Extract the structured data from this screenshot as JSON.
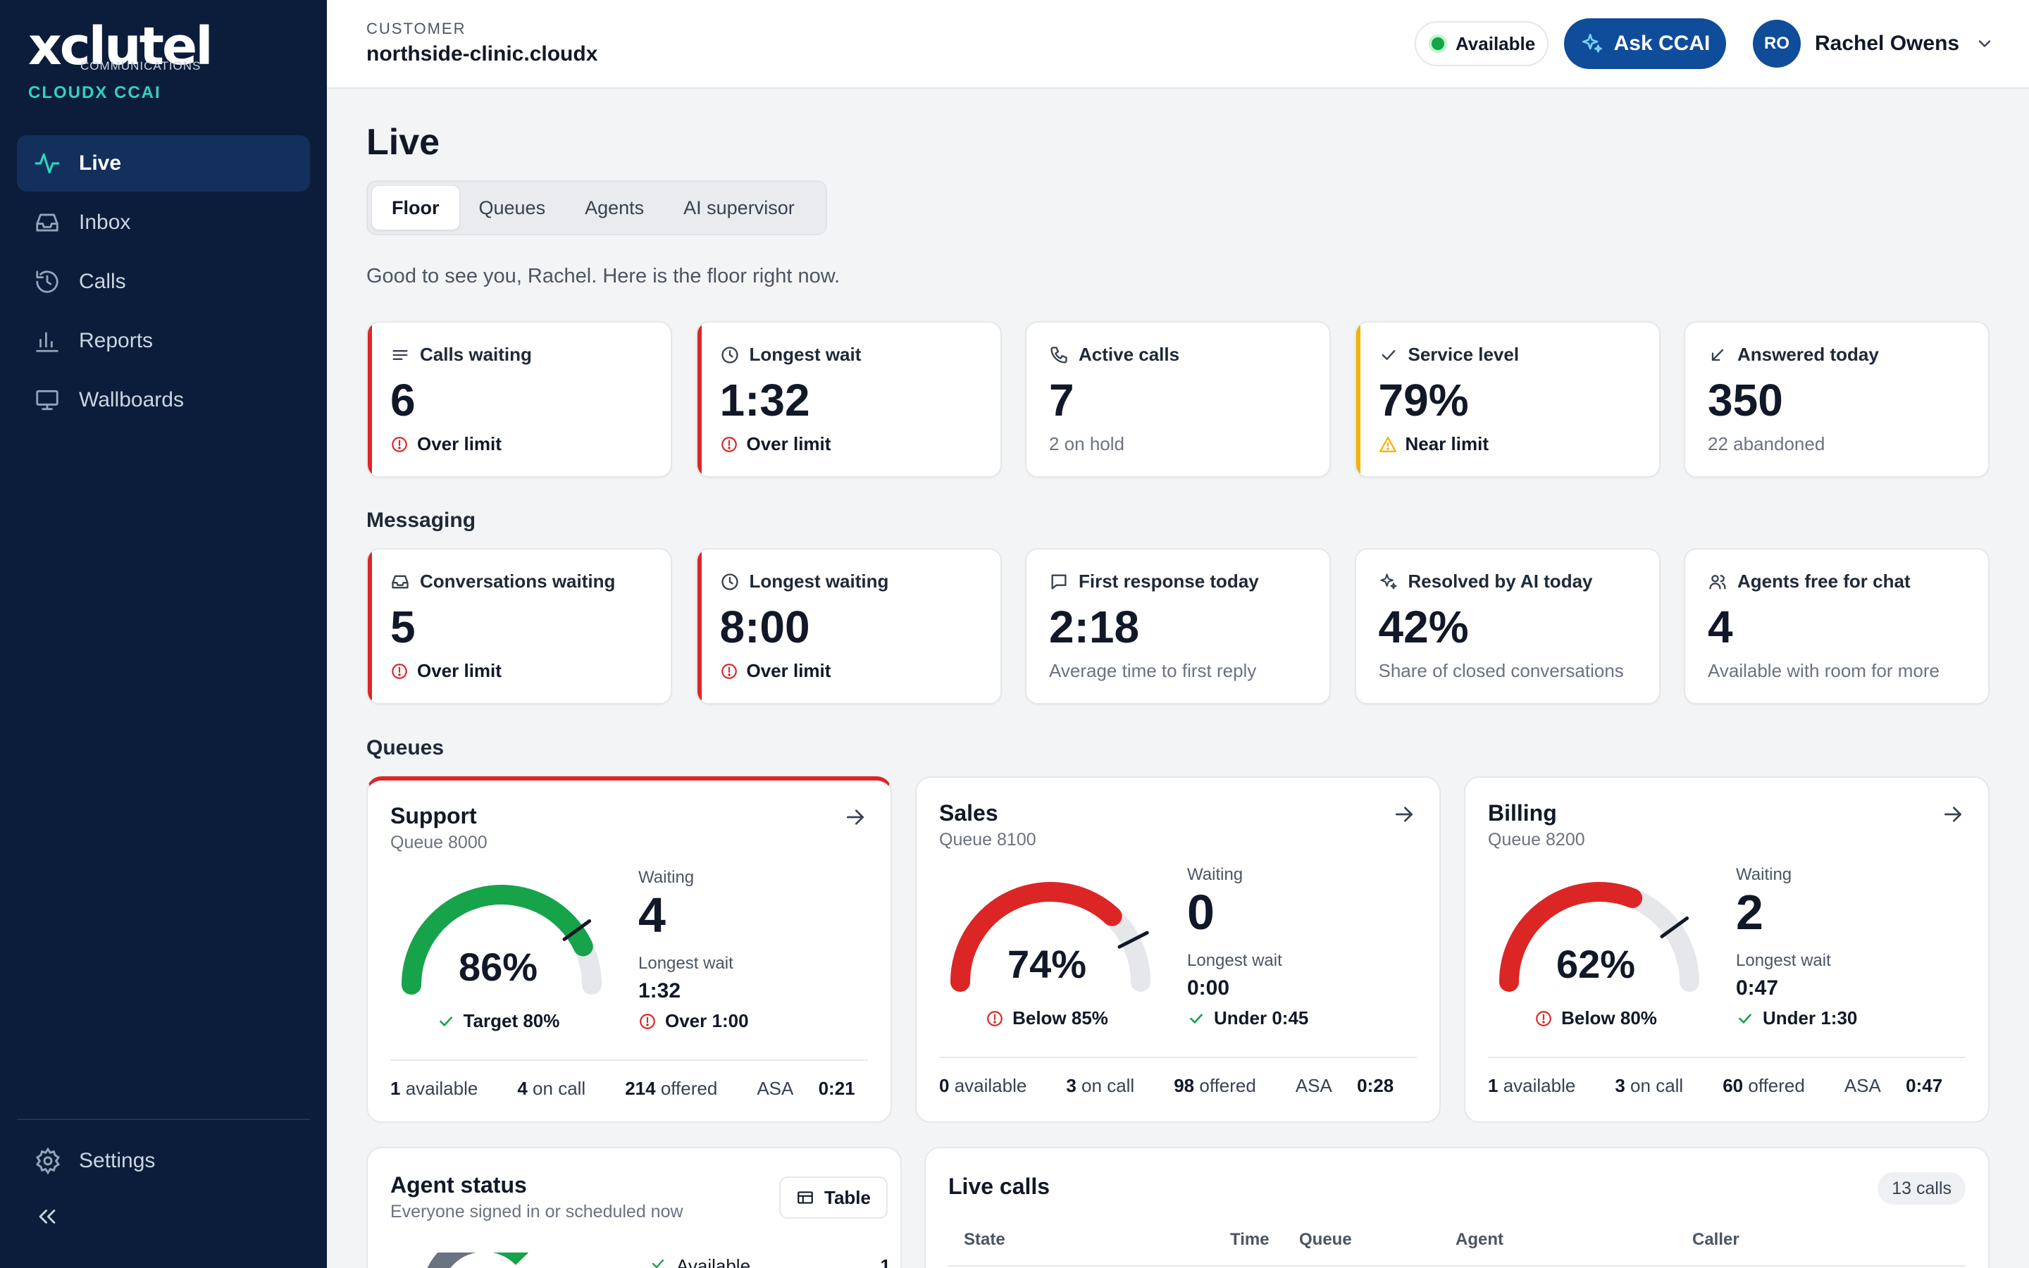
{
  "brand": {
    "logo": "xclutel",
    "logo_sub": "COMMUNICATIONS",
    "product": "CLOUDX CCAI"
  },
  "nav": {
    "items": [
      {
        "label": "Live",
        "icon": "activity-icon",
        "active": true
      },
      {
        "label": "Inbox",
        "icon": "inbox-icon"
      },
      {
        "label": "Calls",
        "icon": "history-icon"
      },
      {
        "label": "Reports",
        "icon": "bar-chart-icon"
      },
      {
        "label": "Wallboards",
        "icon": "monitor-icon"
      }
    ],
    "settings": "Settings"
  },
  "header": {
    "customer_label": "CUSTOMER",
    "customer_name": "northside-clinic.cloudx",
    "status": "Available",
    "ask_label": "Ask CCAI",
    "user_initials": "RO",
    "user_name": "Rachel Owens"
  },
  "page": {
    "title": "Live",
    "tabs": [
      "Floor",
      "Queues",
      "Agents",
      "AI supervisor"
    ],
    "active_tab": "Floor",
    "greeting": "Good to see you, Rachel. Here is the floor right now."
  },
  "calls_kpis": [
    {
      "label": "Calls waiting",
      "value": "6",
      "note": "Over limit",
      "state": "red",
      "icon": "list-icon"
    },
    {
      "label": "Longest wait",
      "value": "1:32",
      "note": "Over limit",
      "state": "red",
      "icon": "clock-icon"
    },
    {
      "label": "Active calls",
      "value": "7",
      "note": "2 on hold",
      "state": "normal",
      "icon": "phone-icon"
    },
    {
      "label": "Service level",
      "value": "79%",
      "note": "Near limit",
      "state": "amber",
      "icon": "check-icon"
    },
    {
      "label": "Answered today",
      "value": "350",
      "note": "22 abandoned",
      "state": "normal",
      "icon": "arrow-down-left-icon"
    }
  ],
  "messaging": {
    "title": "Messaging",
    "kpis": [
      {
        "label": "Conversations waiting",
        "value": "5",
        "note": "Over limit",
        "state": "red",
        "icon": "inbox-icon"
      },
      {
        "label": "Longest waiting",
        "value": "8:00",
        "note": "Over limit",
        "state": "red",
        "icon": "clock-icon"
      },
      {
        "label": "First response today",
        "value": "2:18",
        "note": "Average time to first reply",
        "state": "normal",
        "icon": "message-icon"
      },
      {
        "label": "Resolved by AI today",
        "value": "42%",
        "note": "Share of closed conversations",
        "state": "normal",
        "icon": "sparkle-icon"
      },
      {
        "label": "Agents free for chat",
        "value": "4",
        "note": "Available with room for more",
        "state": "normal",
        "icon": "users-icon"
      }
    ]
  },
  "queues": {
    "title": "Queues",
    "items": [
      {
        "name": "Support",
        "number": "Queue 8000",
        "service_level": 86,
        "target": 80,
        "gauge_color": "#16a34a",
        "target_note": "Target 80%",
        "target_ok": true,
        "waiting_label": "Waiting",
        "waiting": "4",
        "longest_label": "Longest wait",
        "longest": "1:32",
        "longest_note": "Over 1:00",
        "longest_ok": false,
        "available": "1",
        "on_call": "4",
        "offered": "214",
        "asa": "0:21",
        "alert": true
      },
      {
        "name": "Sales",
        "number": "Queue 8100",
        "service_level": 74,
        "target": 85,
        "gauge_color": "#dc2626",
        "target_note": "Below 85%",
        "target_ok": false,
        "waiting_label": "Waiting",
        "waiting": "0",
        "longest_label": "Longest wait",
        "longest": "0:00",
        "longest_note": "Under 0:45",
        "longest_ok": true,
        "available": "0",
        "on_call": "3",
        "offered": "98",
        "asa": "0:28",
        "alert": false
      },
      {
        "name": "Billing",
        "number": "Queue 8200",
        "service_level": 62,
        "target": 80,
        "gauge_color": "#dc2626",
        "target_note": "Below 80%",
        "target_ok": false,
        "waiting_label": "Waiting",
        "waiting": "2",
        "longest_label": "Longest wait",
        "longest": "0:47",
        "longest_note": "Under 1:30",
        "longest_ok": true,
        "available": "1",
        "on_call": "3",
        "offered": "60",
        "asa": "0:47",
        "alert": false
      }
    ],
    "labels": {
      "available": "available",
      "on_call": "on call",
      "offered": "offered",
      "asa": "ASA"
    }
  },
  "agent_status": {
    "title": "Agent status",
    "subtitle": "Everyone signed in or scheduled now",
    "table_button": "Table",
    "legend": [
      {
        "label": "Available",
        "count": "1"
      }
    ]
  },
  "live_calls": {
    "title": "Live calls",
    "count": "13 calls",
    "columns": [
      "State",
      "Time",
      "Queue",
      "Agent",
      "Caller"
    ]
  },
  "colors": {
    "sidebar": "#0b1d3a",
    "accent": "#0f4c9a",
    "danger": "#dc2626",
    "warning": "#f5b000",
    "success": "#16a34a",
    "brand_teal": "#2dd4bf"
  }
}
